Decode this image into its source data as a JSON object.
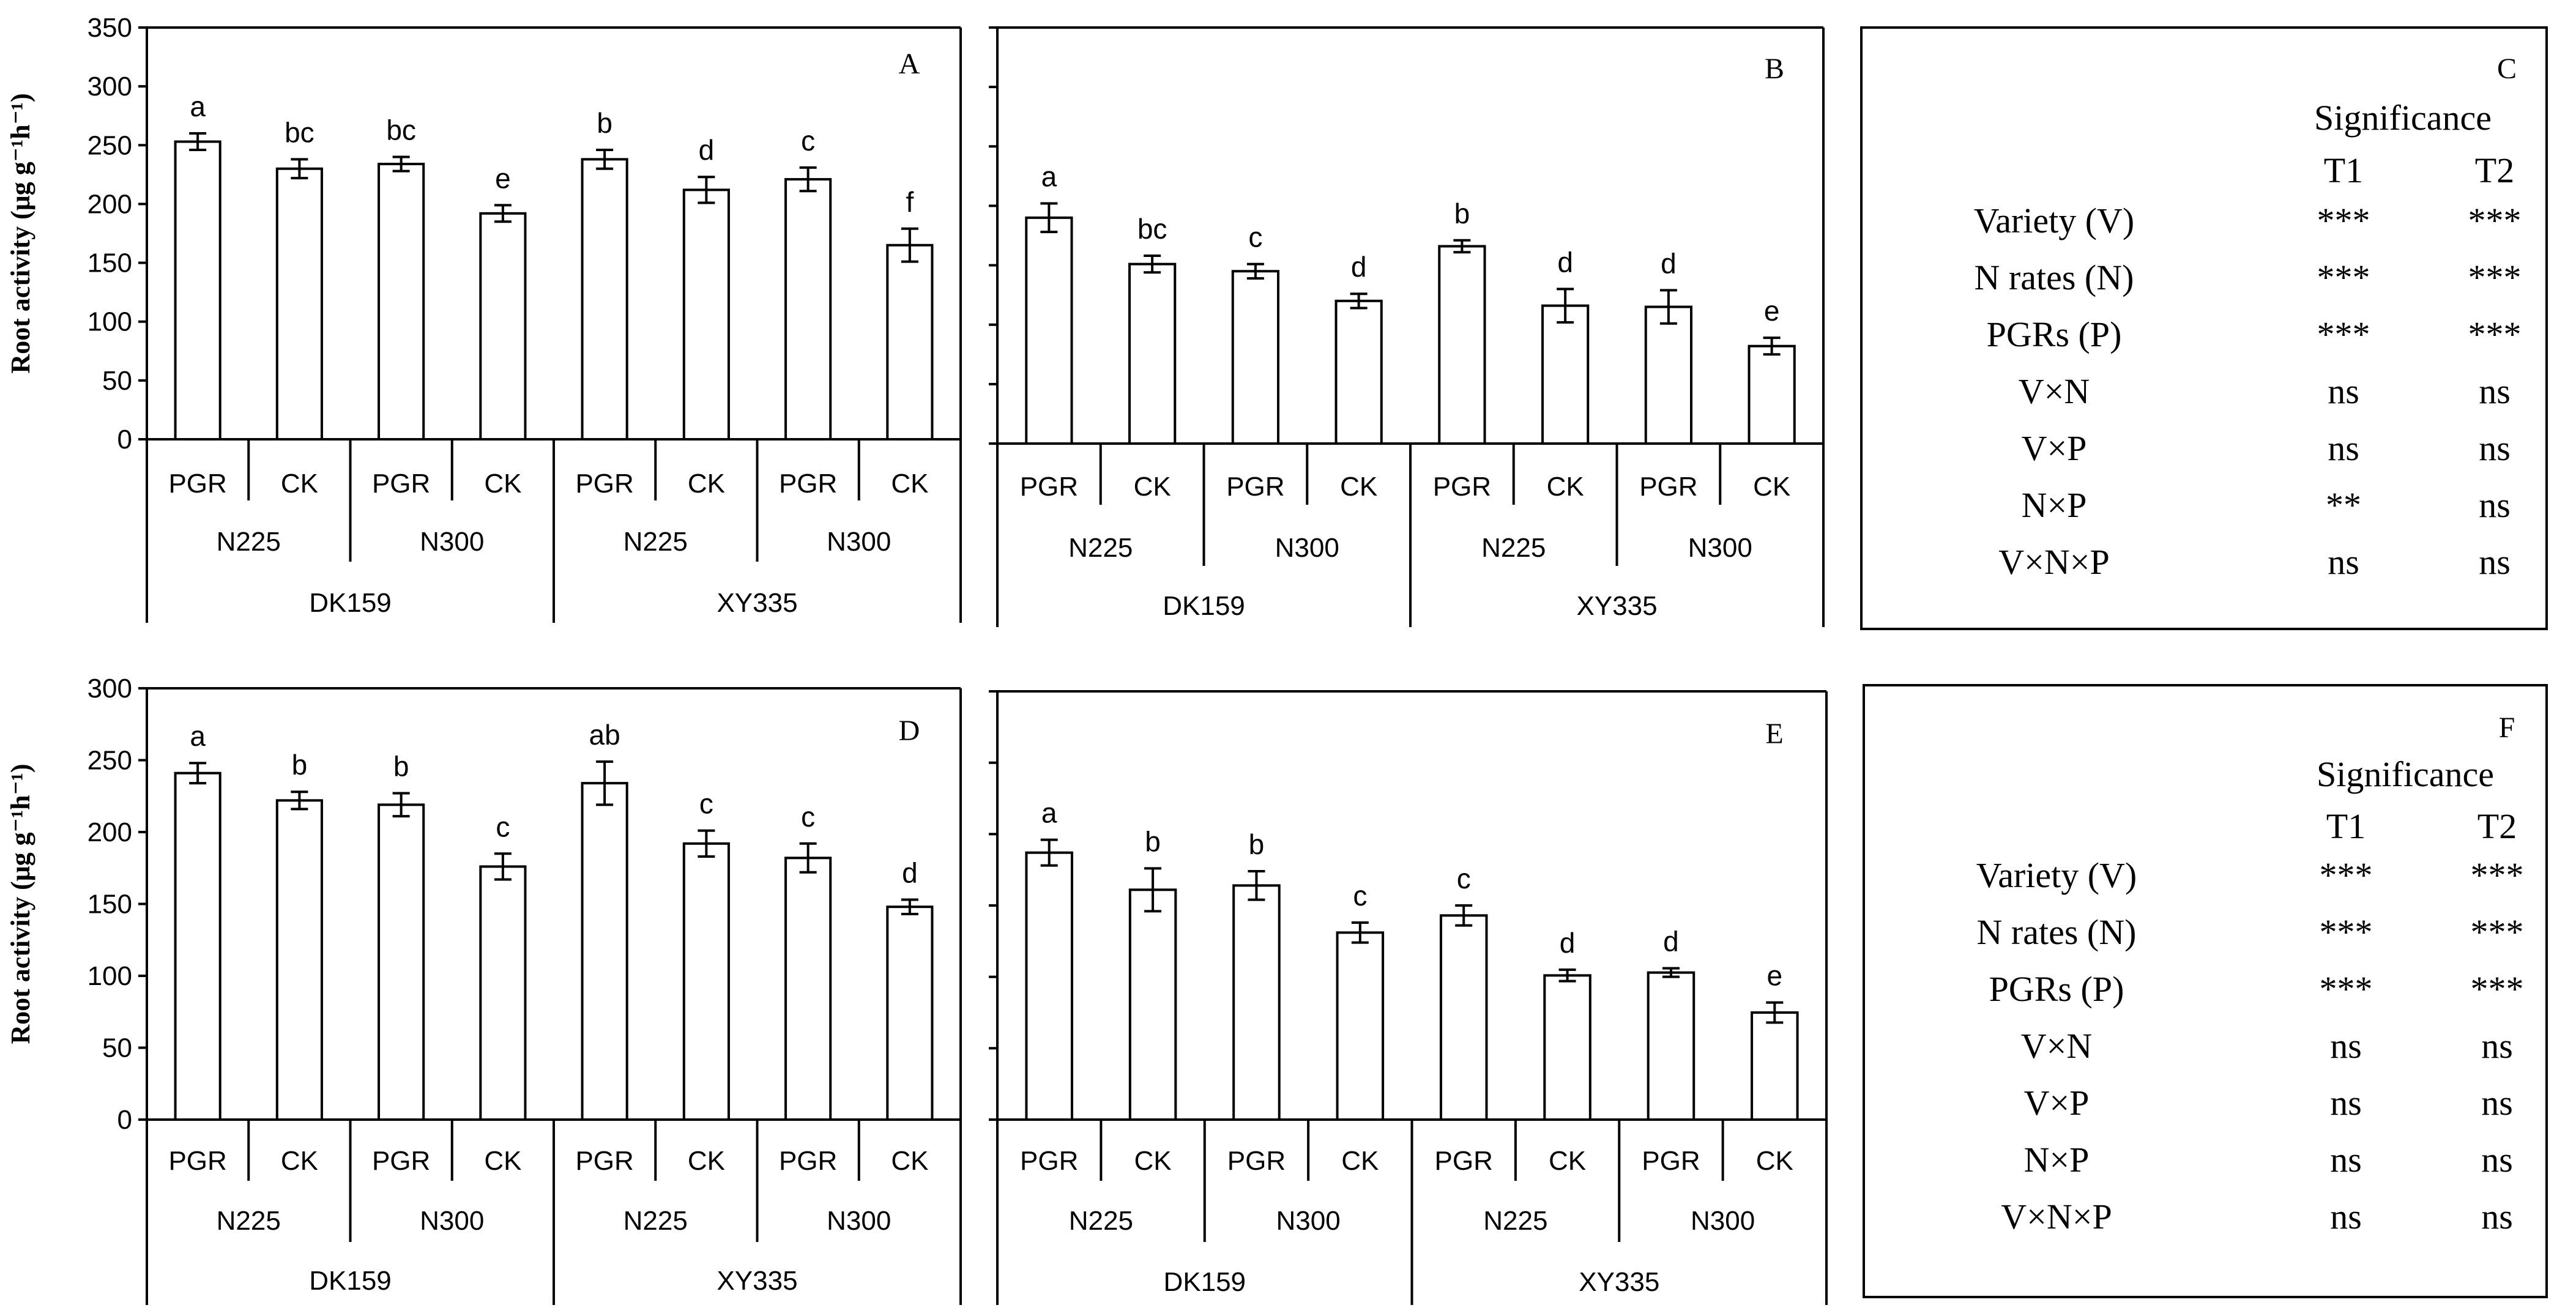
{
  "chart_data": [
    {
      "type": "bar",
      "panel_label": "A",
      "ylabel": "Root activity (μg g⁻¹h⁻¹)",
      "ylim": [
        0,
        350
      ],
      "yticks": [
        0,
        50,
        100,
        150,
        200,
        250,
        300,
        350
      ],
      "treatments": [
        "PGR",
        "CK",
        "PGR",
        "CK",
        "PGR",
        "CK",
        "PGR",
        "CK"
      ],
      "nitrogen_groups": [
        "N225",
        "N300",
        "N225",
        "N300"
      ],
      "variety_groups": [
        "DK159",
        "XY335"
      ],
      "values": [
        253,
        230,
        234,
        192,
        238,
        212,
        221,
        165
      ],
      "errors": [
        7,
        8,
        6,
        7,
        8,
        11,
        10,
        14
      ],
      "letters": [
        "a",
        "bc",
        "bc",
        "e",
        "b",
        "d",
        "c",
        "f"
      ]
    },
    {
      "type": "bar",
      "panel_label": "B",
      "ylim": [
        0,
        350
      ],
      "yticks": [
        0,
        50,
        100,
        150,
        200,
        250,
        300,
        350
      ],
      "treatments": [
        "PGR",
        "CK",
        "PGR",
        "CK",
        "PGR",
        "CK",
        "PGR",
        "CK"
      ],
      "nitrogen_groups": [
        "N225",
        "N300",
        "N225",
        "N300"
      ],
      "variety_groups": [
        "DK159",
        "XY335"
      ],
      "values": [
        190,
        151,
        145,
        120,
        166,
        116,
        115,
        82
      ],
      "errors": [
        12,
        7,
        6,
        6,
        5,
        14,
        14,
        7
      ],
      "letters": [
        "a",
        "bc",
        "c",
        "d",
        "b",
        "d",
        "d",
        "e"
      ]
    },
    {
      "type": "bar",
      "panel_label": "D",
      "ylabel": "Root activity (μg g⁻¹h⁻¹)",
      "ylim": [
        0,
        300
      ],
      "yticks": [
        0,
        50,
        100,
        150,
        200,
        250,
        300
      ],
      "treatments": [
        "PGR",
        "CK",
        "PGR",
        "CK",
        "PGR",
        "CK",
        "PGR",
        "CK"
      ],
      "nitrogen_groups": [
        "N225",
        "N300",
        "N225",
        "N300"
      ],
      "variety_groups": [
        "DK159",
        "XY335"
      ],
      "values": [
        241,
        222,
        219,
        176,
        234,
        192,
        182,
        148
      ],
      "errors": [
        7,
        6,
        8,
        9,
        15,
        9,
        10,
        5
      ],
      "letters": [
        "a",
        "b",
        "b",
        "c",
        "ab",
        "c",
        "c",
        "d"
      ]
    },
    {
      "type": "bar",
      "panel_label": "E",
      "ylim": [
        0,
        300
      ],
      "yticks": [
        0,
        50,
        100,
        150,
        200,
        250,
        300
      ],
      "treatments": [
        "PGR",
        "CK",
        "PGR",
        "CK",
        "PGR",
        "CK",
        "PGR",
        "CK"
      ],
      "nitrogen_groups": [
        "N225",
        "N300",
        "N225",
        "N300"
      ],
      "variety_groups": [
        "DK159",
        "XY335"
      ],
      "values": [
        187,
        161,
        164,
        131,
        143,
        101,
        103,
        75
      ],
      "errors": [
        9,
        15,
        10,
        7,
        7,
        4,
        3,
        7
      ],
      "letters": [
        "a",
        "b",
        "b",
        "c",
        "c",
        "d",
        "d",
        "e"
      ]
    }
  ],
  "significance_tables": [
    {
      "panel_label": "C",
      "header": "Significance",
      "columns": [
        "T1",
        "T2"
      ],
      "rows": [
        {
          "factor": "Variety (V)",
          "t1": "***",
          "t2": "***"
        },
        {
          "factor": "N rates (N)",
          "t1": "***",
          "t2": "***"
        },
        {
          "factor": "PGRs (P)",
          "t1": "***",
          "t2": "***"
        },
        {
          "factor": "V×N",
          "t1": "ns",
          "t2": "ns"
        },
        {
          "factor": "V×P",
          "t1": "ns",
          "t2": "ns"
        },
        {
          "factor": "N×P",
          "t1": "**",
          "t2": "ns"
        },
        {
          "factor": "V×N×P",
          "t1": "ns",
          "t2": "ns"
        }
      ]
    },
    {
      "panel_label": "F",
      "header": "Significance",
      "columns": [
        "T1",
        "T2"
      ],
      "rows": [
        {
          "factor": "Variety (V)",
          "t1": "***",
          "t2": "***"
        },
        {
          "factor": "N rates (N)",
          "t1": "***",
          "t2": "***"
        },
        {
          "factor": "PGRs (P)",
          "t1": "***",
          "t2": "***"
        },
        {
          "factor": "V×N",
          "t1": "ns",
          "t2": "ns"
        },
        {
          "factor": "V×P",
          "t1": "ns",
          "t2": "ns"
        },
        {
          "factor": "N×P",
          "t1": "ns",
          "t2": "ns"
        },
        {
          "factor": "V×N×P",
          "t1": "ns",
          "t2": "ns"
        }
      ]
    }
  ]
}
